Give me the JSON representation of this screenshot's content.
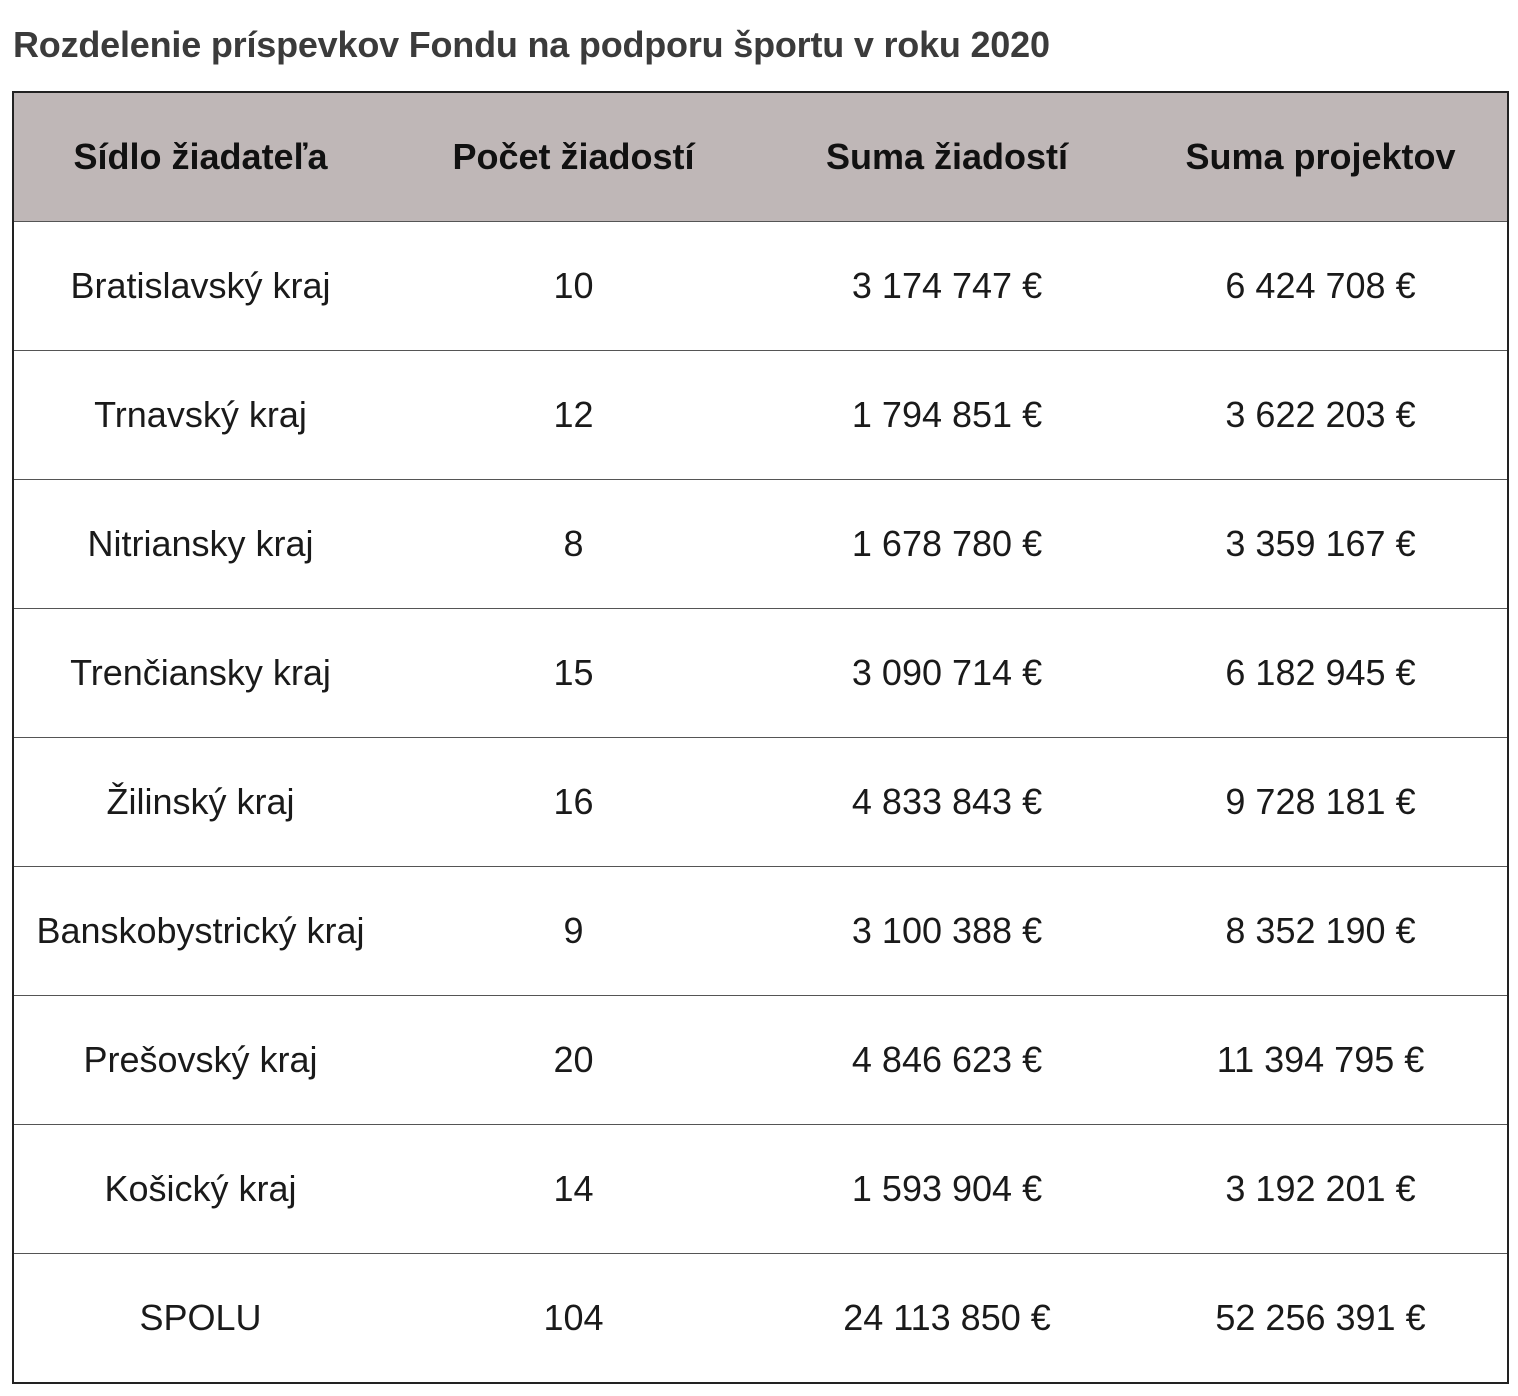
{
  "title": "Rozdelenie príspevkov Fondu na podporu športu v roku 2020",
  "table": {
    "headers": [
      "Sídlo žiadateľa",
      "Počet žiadostí",
      "Suma žiadostí",
      "Suma projektov"
    ],
    "rows": [
      [
        "Bratislavský kraj",
        "10",
        "3 174 747 €",
        "6 424 708 €"
      ],
      [
        "Trnavský kraj",
        "12",
        "1 794 851 €",
        "3 622 203 €"
      ],
      [
        "Nitriansky kraj",
        "8",
        "1 678 780 €",
        "3 359 167 €"
      ],
      [
        "Trenčiansky kraj",
        "15",
        "3 090 714 €",
        "6 182 945 €"
      ],
      [
        "Žilinský kraj",
        "16",
        "4 833 843 €",
        "9 728 181 €"
      ],
      [
        "Banskobystrický kraj",
        "9",
        "3 100 388 €",
        "8 352 190 €"
      ],
      [
        "Prešovský kraj",
        "20",
        "4 846 623 €",
        "11 394 795 €"
      ],
      [
        "Košický kraj",
        "14",
        "1 593 904 €",
        "3 192 201 €"
      ],
      [
        "SPOLU",
        "104",
        "24 113 850 €",
        "52 256 391 €"
      ]
    ]
  },
  "colors": {
    "header_background": "#bfb7b7",
    "title_text": "#3b3b3b",
    "border": "#222222"
  }
}
